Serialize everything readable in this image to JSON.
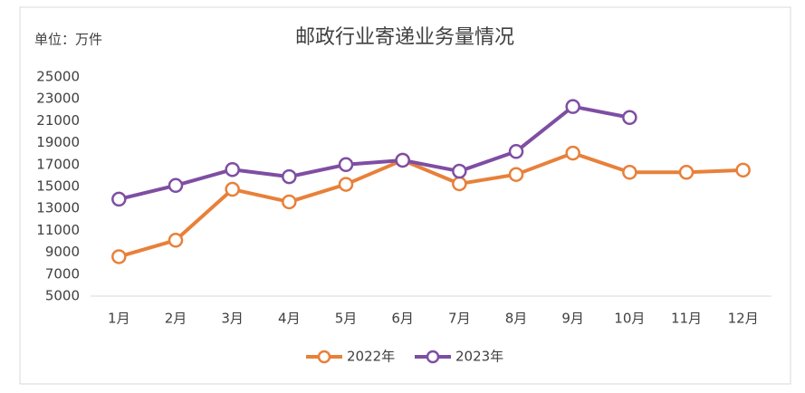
{
  "chart_data": {
    "type": "line",
    "title": "邮政行业寄递业务量情况",
    "unit_label": "单位：万件",
    "categories": [
      "1月",
      "2月",
      "3月",
      "4月",
      "5月",
      "6月",
      "7月",
      "8月",
      "9月",
      "10月",
      "11月",
      "12月"
    ],
    "series": [
      {
        "name": "2022年",
        "color": "#e8803a",
        "values": [
          8600,
          10100,
          14750,
          13600,
          15200,
          17400,
          15250,
          16100,
          18050,
          16300,
          16300,
          16500
        ]
      },
      {
        "name": "2023年",
        "color": "#7e4ea3",
        "values": [
          13850,
          15100,
          16550,
          15900,
          17000,
          17400,
          16400,
          18200,
          22300,
          21300,
          null,
          null
        ]
      }
    ],
    "ylim": [
      5000,
      25000
    ],
    "yticks": [
      5000,
      7000,
      9000,
      11000,
      13000,
      15000,
      17000,
      19000,
      21000,
      23000,
      25000
    ],
    "legend": "bottom"
  }
}
